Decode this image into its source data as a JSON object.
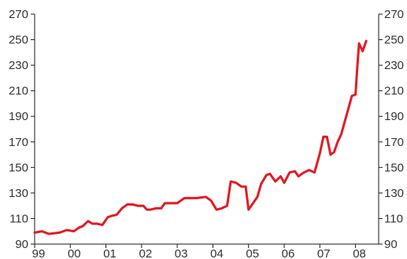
{
  "chart_data": {
    "type": "line",
    "title": "",
    "xlabel": "",
    "ylabel": "",
    "x_range": [
      1999.0,
      2008.65
    ],
    "x_ticks": [
      {
        "value": 1999,
        "label": "99"
      },
      {
        "value": 2000,
        "label": "00"
      },
      {
        "value": 2001,
        "label": "01"
      },
      {
        "value": 2002,
        "label": "02"
      },
      {
        "value": 2003,
        "label": "03"
      },
      {
        "value": 2004,
        "label": "04"
      },
      {
        "value": 2005,
        "label": "05"
      },
      {
        "value": 2006,
        "label": "06"
      },
      {
        "value": 2007,
        "label": "07"
      },
      {
        "value": 2008,
        "label": "08"
      }
    ],
    "ylim": [
      90,
      270
    ],
    "y_ticks": [
      90,
      110,
      130,
      150,
      170,
      190,
      210,
      230,
      250,
      270
    ],
    "y_tick_labels": [
      "90",
      "110",
      "130",
      "150",
      "170",
      "190",
      "210",
      "230",
      "250",
      "270"
    ],
    "right_axis": true,
    "grid": false,
    "line_color": "#e31b23",
    "series": [
      {
        "x": [
          1999.0,
          1999.2,
          1999.4,
          1999.7,
          1999.9,
          2000.1,
          2000.25,
          2000.35,
          2000.5,
          2000.62,
          2000.75,
          2000.9,
          2001.05,
          2001.15,
          2001.3,
          2001.45,
          2001.6,
          2001.75,
          2001.9,
          2002.05,
          2002.15,
          2002.25,
          2002.4,
          2002.55,
          2002.65,
          2002.8,
          2003.0,
          2003.2,
          2003.35,
          2003.55,
          2003.8,
          2003.95,
          2004.1,
          2004.25,
          2004.4,
          2004.5,
          2004.65,
          2004.8,
          2004.92,
          2005.0,
          2005.15,
          2005.25,
          2005.35,
          2005.5,
          2005.6,
          2005.75,
          2005.9,
          2006.0,
          2006.15,
          2006.3,
          2006.4,
          2006.55,
          2006.7,
          2006.85,
          2007.0,
          2007.1,
          2007.2,
          2007.3,
          2007.4,
          2007.5,
          2007.6,
          2007.7,
          2007.8,
          2007.9,
          2008.0,
          2008.05,
          2008.1,
          2008.2,
          2008.3
        ],
        "values": [
          99,
          100,
          98,
          99,
          101,
          100,
          103,
          104,
          108,
          106,
          106,
          105,
          111,
          112,
          113,
          118,
          121,
          121,
          120,
          120,
          117,
          117,
          118,
          118,
          122,
          122,
          122,
          126,
          126,
          126,
          127,
          124,
          117,
          118,
          120,
          139,
          138,
          135,
          135,
          117,
          123,
          127,
          137,
          144,
          145,
          139,
          143,
          138,
          146,
          147,
          143,
          146,
          148,
          146,
          161,
          174,
          174,
          160,
          162,
          170,
          176,
          186,
          196,
          206,
          207,
          228,
          247,
          241,
          249
        ]
      }
    ]
  }
}
